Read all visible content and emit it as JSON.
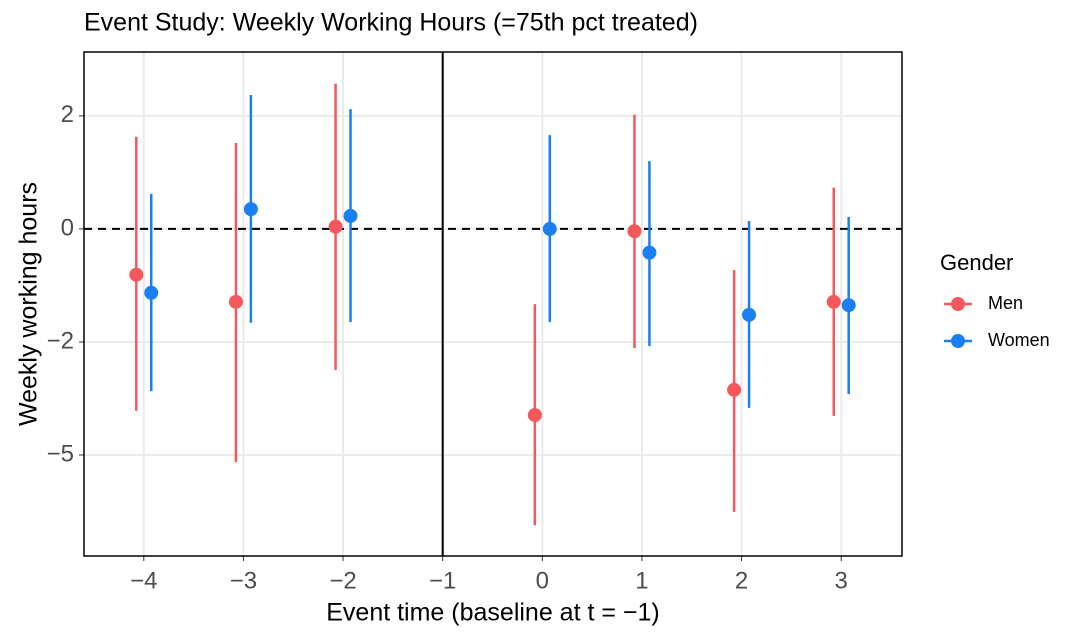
{
  "chart_data": {
    "type": "pointrange",
    "title": "Event Study: Weekly Working Hours (=75th pct treated)",
    "x_label": "Event time (baseline at t = −1)",
    "y_label": "Weekly working hours",
    "legend_title": "Gender",
    "legend_position": "right",
    "grid": true,
    "vline": -1,
    "hline": 0,
    "xlim": [
      -4.6,
      3.61
    ],
    "xticks": [
      {
        "value": -4,
        "label": "−4"
      },
      {
        "value": -3,
        "label": "−3"
      },
      {
        "value": -2,
        "label": "−2"
      },
      {
        "value": -1,
        "label": "−1"
      },
      0,
      1,
      2,
      3
    ],
    "ylim": [
      -7.68,
      3.13
    ],
    "yticks": [
      2,
      0,
      {
        "value": -2,
        "label": "−2"
      },
      {
        "value": -5,
        "label": "−5"
      }
    ],
    "x": [
      -4,
      -3,
      -2,
      0,
      1,
      2,
      3
    ],
    "series": [
      {
        "name": "Men",
        "color": "#f5585c",
        "values": [
          -0.81,
          -1.29,
          0.04,
          -3.94,
          -0.04,
          -3.27,
          -1.29
        ],
        "lower": [
          -3.83,
          -5.19,
          -2.74,
          -6.86,
          -2.16,
          -6.51,
          -3.96
        ],
        "upper": [
          1.63,
          1.52,
          2.57,
          -1.33,
          2.02,
          -0.73,
          0.73
        ]
      },
      {
        "name": "Women",
        "color": "#1a7ff0",
        "values": [
          -1.13,
          0.35,
          0.23,
          0,
          -0.42,
          -1.52,
          -1.35
        ],
        "lower": [
          -3.3,
          -1.66,
          -1.65,
          -1.65,
          -2.11,
          -3.75,
          -3.38
        ],
        "upper": [
          0.62,
          2.37,
          2.12,
          1.66,
          1.2,
          0.14,
          0.21
        ]
      }
    ]
  }
}
